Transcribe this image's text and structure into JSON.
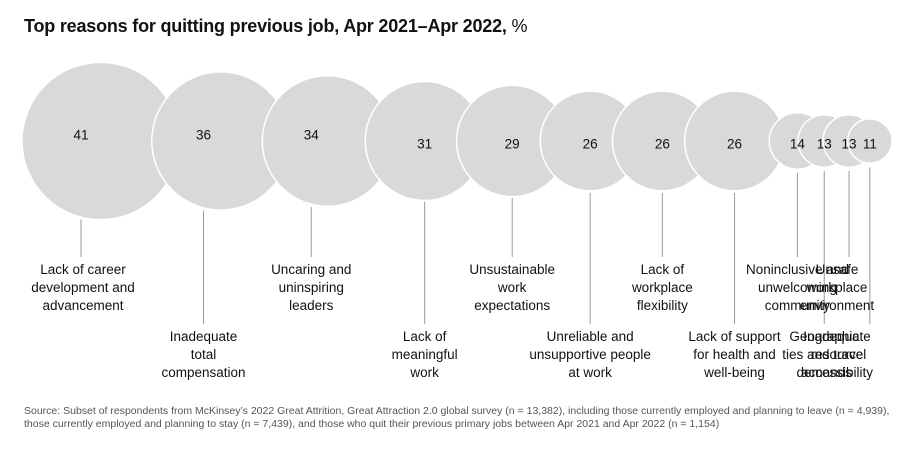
{
  "chart_data": {
    "type": "bubble",
    "title": "Top reasons for quitting previous job, Apr 2021–Apr 2022,",
    "unit": "%",
    "categories": [
      "Lack of career\ndevelopment and\nadvancement",
      "Inadequate\ntotal\ncompensation",
      "Uncaring and\nuninspiring\nleaders",
      "Lack of\nmeaningful\nwork",
      "Unsustainable\nwork\nexpectations",
      "Unreliable and\nunsupportive people\nat work",
      "Lack of\nworkplace\nflexibility",
      "Lack of support\nfor health and\nwell-being",
      "Noninclusive and\nunwelcoming\ncommunity",
      "Geographic\nties and travel\ndemands",
      "Unsafe\nworkplace\nenvironment",
      "Inadequate\nresource\naccessibility"
    ],
    "values": [
      41,
      36,
      34,
      31,
      29,
      26,
      26,
      26,
      14,
      13,
      13,
      11
    ],
    "label_rows": [
      "top",
      "bottom",
      "top",
      "bottom",
      "top",
      "bottom",
      "top",
      "bottom",
      "top",
      "bottom",
      "top",
      "bottom"
    ]
  },
  "source": "Source: Subset of respondents from McKinsey’s 2022 Great Attrition, Great Attraction 2.0 global survey (n = 13,382), including those currently employed and planning to leave (n = 4,939), those currently employed and planning to stay (n = 7,439), and those who quit their previous primary jobs between Apr 2021 and Apr 2022 (n = 1,154)",
  "colors": {
    "bubble_fill": "#d9d9d9",
    "bubble_stroke": "#ffffff",
    "leader": "#9a9a9a"
  }
}
